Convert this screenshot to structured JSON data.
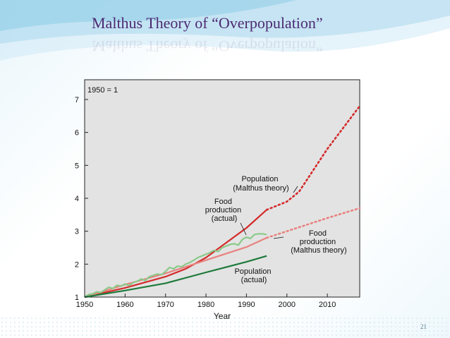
{
  "slide": {
    "title": "Malthus Theory of “Overpopulation”",
    "page_number": "21"
  },
  "chart_data": {
    "type": "line",
    "title": "",
    "baseline_note": "1950 = 1",
    "xlabel": "Year",
    "ylabel": "",
    "xlim": [
      1950,
      2018
    ],
    "ylim": [
      1,
      7.6
    ],
    "x_ticks": [
      1950,
      1960,
      1970,
      1980,
      1990,
      2000,
      2010
    ],
    "y_ticks": [
      1,
      2,
      3,
      4,
      5,
      6,
      7
    ],
    "grid": false,
    "series": [
      {
        "name": "Population (Malthus theory)",
        "color": "#d42a2a",
        "style": "solid",
        "x": [
          1950,
          1960,
          1970,
          1975,
          1980,
          1985,
          1990,
          1995
        ],
        "y": [
          1.0,
          1.28,
          1.62,
          1.86,
          2.2,
          2.65,
          3.1,
          3.65
        ]
      },
      {
        "name": "Population (Malthus theory) projection",
        "color": "#d42a2a",
        "style": "dotted",
        "x": [
          1995,
          2000,
          2003,
          2010,
          2018
        ],
        "y": [
          3.65,
          3.9,
          4.2,
          5.5,
          6.8
        ]
      },
      {
        "name": "Food production (Malthus theory)",
        "color": "#e8827f",
        "style": "solid",
        "x": [
          1950,
          1960,
          1970,
          1980,
          1990,
          1995
        ],
        "y": [
          1.0,
          1.38,
          1.72,
          2.12,
          2.52,
          2.8
        ]
      },
      {
        "name": "Food production (Malthus theory) projection",
        "color": "#e8827f",
        "style": "dotted",
        "x": [
          1995,
          2000,
          2010,
          2018
        ],
        "y": [
          2.8,
          3.0,
          3.4,
          3.7
        ]
      },
      {
        "name": "Food production (actual)",
        "color": "#8cc98a",
        "style": "solid",
        "x": [
          1950,
          1951,
          1952,
          1953,
          1954,
          1955,
          1956,
          1957,
          1958,
          1959,
          1960,
          1961,
          1962,
          1963,
          1964,
          1965,
          1966,
          1967,
          1968,
          1969,
          1970,
          1971,
          1972,
          1973,
          1974,
          1975,
          1976,
          1977,
          1978,
          1979,
          1980,
          1981,
          1982,
          1983,
          1984,
          1985,
          1986,
          1987,
          1988,
          1989,
          1990,
          1991,
          1992,
          1993,
          1994,
          1995
        ],
        "y": [
          1.0,
          1.08,
          1.1,
          1.16,
          1.14,
          1.22,
          1.3,
          1.26,
          1.36,
          1.33,
          1.4,
          1.35,
          1.44,
          1.48,
          1.55,
          1.5,
          1.62,
          1.66,
          1.7,
          1.68,
          1.78,
          1.9,
          1.86,
          1.94,
          1.92,
          2.0,
          2.05,
          2.12,
          2.2,
          2.25,
          2.3,
          2.35,
          2.42,
          2.38,
          2.5,
          2.55,
          2.6,
          2.62,
          2.58,
          2.75,
          2.82,
          2.78,
          2.9,
          2.92,
          2.92,
          2.9
        ]
      },
      {
        "name": "Population (actual)",
        "color": "#1e7a3a",
        "style": "solid",
        "x": [
          1950,
          1960,
          1970,
          1980,
          1990,
          1995
        ],
        "y": [
          1.0,
          1.2,
          1.42,
          1.75,
          2.07,
          2.25
        ]
      }
    ],
    "annotations": [
      {
        "lines": [
          "Population",
          "(Malthus theory)"
        ]
      },
      {
        "lines": [
          "Food",
          "production",
          "(actual)"
        ]
      },
      {
        "lines": [
          "Food",
          "production",
          "(Malthus theory)"
        ]
      },
      {
        "lines": [
          "Population",
          "(actual)"
        ]
      }
    ]
  }
}
